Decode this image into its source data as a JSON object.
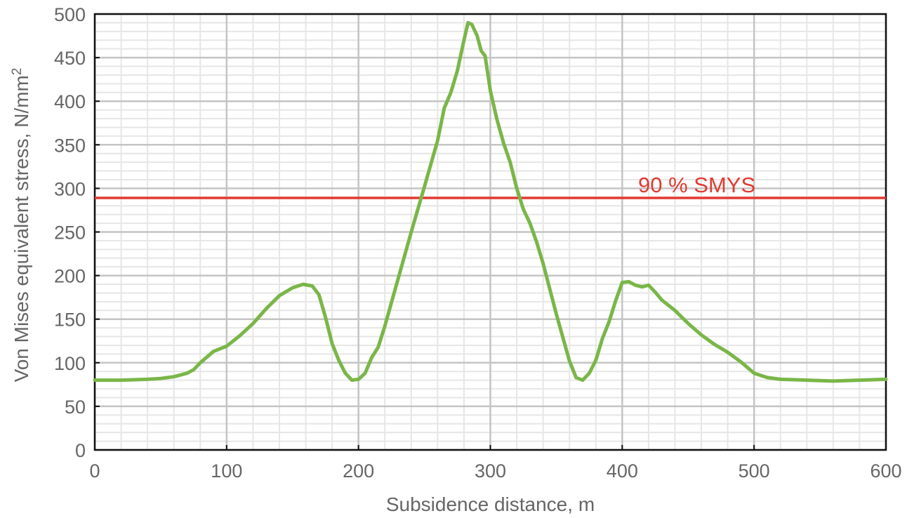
{
  "chart_data": {
    "type": "line",
    "title": "",
    "xlabel": "Subsidence distance, m",
    "ylabel": "Von Mises equivalent stress, N/mm",
    "ylabel_superscript": "2",
    "xlim": [
      0,
      600
    ],
    "ylim": [
      0,
      500
    ],
    "xticks": [
      "0",
      "100",
      "200",
      "300",
      "400",
      "500",
      "600"
    ],
    "yticks": [
      "0",
      "50",
      "100",
      "150",
      "200",
      "250",
      "300",
      "350",
      "400",
      "450",
      "500"
    ],
    "grid": true,
    "colors": {
      "series": "#7ab648",
      "reference": "#e23a30",
      "major_grid": "#c4c4c4",
      "minor_grid": "#e6e6e6",
      "axis": "#111111",
      "text": "#666666"
    },
    "reference_line": {
      "label": "90 % SMYS",
      "y": 289
    },
    "series": [
      {
        "x": [
          0,
          20,
          40,
          50,
          60,
          70,
          75,
          80,
          90,
          100,
          110,
          120,
          130,
          140,
          150,
          158,
          165,
          170,
          175,
          180,
          185,
          190,
          195,
          200,
          205,
          210,
          215,
          220,
          230,
          240,
          250,
          260,
          265,
          270,
          275,
          280,
          283,
          286,
          290,
          293,
          296,
          300,
          305,
          310,
          315,
          320,
          325,
          330,
          335,
          340,
          345,
          350,
          355,
          360,
          365,
          370,
          375,
          380,
          385,
          390,
          395,
          400,
          405,
          410,
          415,
          420,
          425,
          430,
          440,
          450,
          460,
          470,
          480,
          490,
          500,
          510,
          520,
          540,
          560,
          580,
          600
        ],
        "y": [
          80,
          80,
          81,
          82,
          84,
          88,
          92,
          100,
          113,
          119,
          131,
          145,
          162,
          177,
          186,
          190,
          188,
          178,
          152,
          122,
          103,
          88,
          80,
          81,
          88,
          106,
          118,
          142,
          196,
          250,
          302,
          355,
          392,
          410,
          435,
          470,
          490,
          488,
          475,
          458,
          452,
          412,
          379,
          352,
          330,
          300,
          276,
          260,
          239,
          214,
          185,
          156,
          129,
          102,
          83,
          80,
          88,
          103,
          128,
          147,
          171,
          192,
          193,
          189,
          187,
          189,
          181,
          172,
          160,
          145,
          132,
          121,
          112,
          101,
          88,
          83,
          81,
          80,
          79,
          80,
          81
        ]
      }
    ]
  }
}
